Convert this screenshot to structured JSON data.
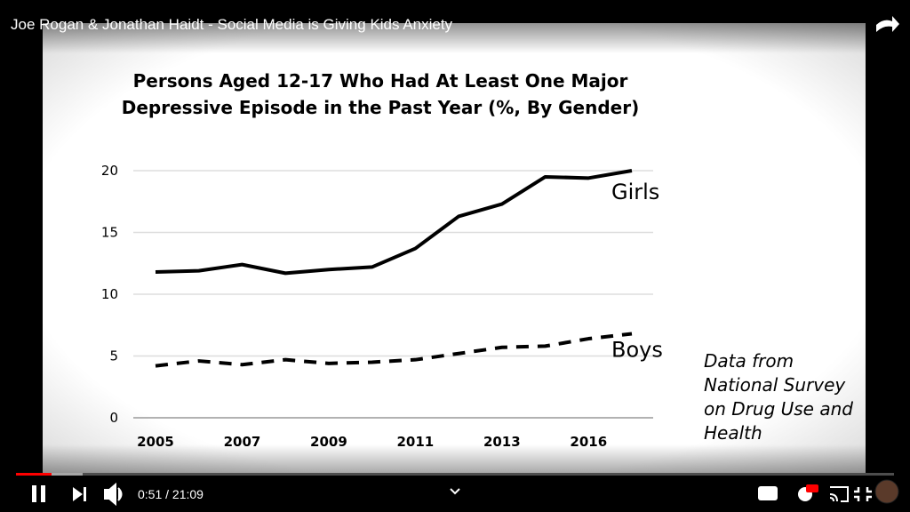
{
  "video": {
    "title": "Joe Rogan & Jonathan Haidt - Social Media is Giving Kids Anxiety",
    "time": "0:51 / 21:09"
  },
  "chart_data": {
    "type": "line",
    "title": [
      "Persons Aged 12-17 Who Had At Least One Major",
      "Depressive Episode in the Past Year (%, By Gender)"
    ],
    "categories": [
      "2005",
      null,
      "2007",
      null,
      "2009",
      null,
      "2011",
      null,
      "2013",
      null,
      "2016",
      null
    ],
    "series": [
      {
        "name": "Girls",
        "color": "#000000",
        "linestyle": "solid",
        "values": [
          11.8,
          11.9,
          12.4,
          11.7,
          12.0,
          12.2,
          13.7,
          16.3,
          17.3,
          19.5,
          19.4,
          20.0
        ]
      },
      {
        "name": "Boys",
        "color": "#000000",
        "linestyle": "dashed",
        "values": [
          4.2,
          4.6,
          4.3,
          4.7,
          4.4,
          4.5,
          4.7,
          5.2,
          5.7,
          5.8,
          6.4,
          6.8
        ]
      }
    ],
    "ylim": [
      0,
      20
    ],
    "yticks": [
      0,
      5,
      10,
      15,
      20
    ],
    "grid": true,
    "annotation": [
      "Data from",
      "National Survey",
      "on Drug Use and",
      "Health"
    ]
  }
}
